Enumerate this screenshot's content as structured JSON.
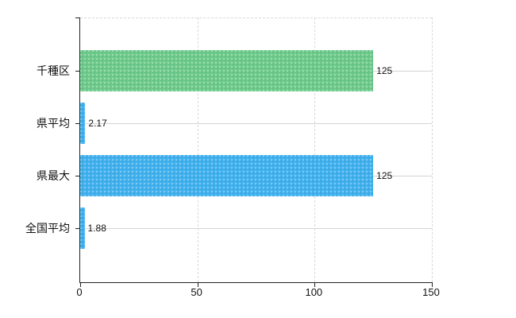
{
  "chart_data": {
    "type": "bar",
    "orientation": "horizontal",
    "title": "",
    "categories": [
      "千種区",
      "県平均",
      "県最大",
      "全国平均"
    ],
    "values": [
      125,
      2.17,
      125,
      1.88
    ],
    "value_labels": [
      "125",
      "2.17",
      "125",
      "1.88"
    ],
    "bar_colors": [
      "#6ecb8c",
      "#41b2ef",
      "#41b2ef",
      "#41b2ef"
    ],
    "x_ticks": [
      "0",
      "50",
      "100",
      "150"
    ],
    "x_tick_values": [
      0,
      50,
      100,
      150
    ],
    "xlim": [
      0,
      150
    ],
    "grid": true,
    "legend": "none",
    "axis_color": "#222222",
    "h_gridline_color": "#d4d4d4",
    "v_gridline_color": "#d9d9d9"
  }
}
